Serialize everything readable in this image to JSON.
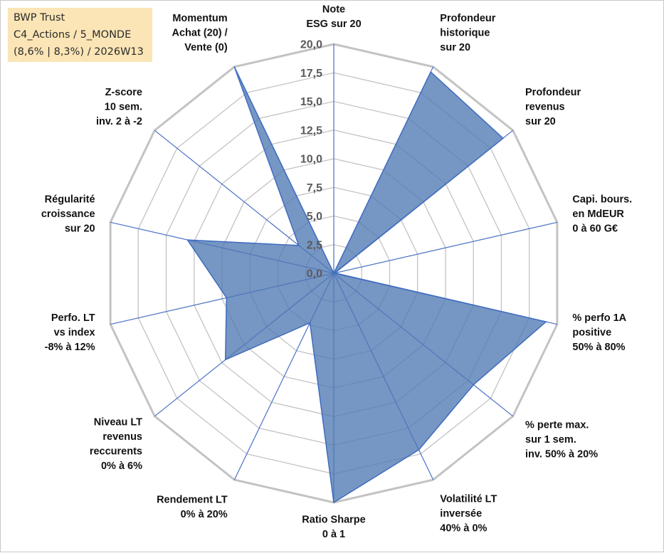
{
  "info_box": {
    "line1": "BWP Trust",
    "line2": "C4_Actions / 5_MONDE",
    "line3": "(8,6% | 8,3%) / 2026W13"
  },
  "colors": {
    "grid": "#c3c3c3",
    "spoke": "#4a72c4",
    "fill": "#4f79b3",
    "fill_stroke": "#3f6cc0",
    "info_bg": "#fbe5b6"
  },
  "chart_data": {
    "type": "radar",
    "title": "",
    "range": [
      0,
      20
    ],
    "ticks": [
      "0,0",
      "2,5",
      "5,0",
      "7,5",
      "10,0",
      "12,5",
      "15,0",
      "17,5",
      "20,0"
    ],
    "axes": [
      [
        "Note",
        "ESG sur 20"
      ],
      [
        "Profondeur",
        "historique",
        "sur 20"
      ],
      [
        "Profondeur",
        "revenus",
        "sur 20"
      ],
      [
        "Capi. bours.",
        "en MdEUR",
        "0 à 60 G€"
      ],
      [
        "% perfo 1A",
        "positive",
        "50% à 80%"
      ],
      [
        "% perte max.",
        "sur 1 sem.",
        "inv. 50% à 20%"
      ],
      [
        "Volatilité LT",
        "inversée",
        "40% à 0%"
      ],
      [
        "Ratio Sharpe",
        "0 à 1"
      ],
      [
        "Rendement LT",
        "0% à 20%"
      ],
      [
        "Niveau LT",
        "revenus",
        "reccurents",
        "0% à 6%"
      ],
      [
        "Perfo. LT",
        "vs index",
        "-8% à 12%"
      ],
      [
        "Régularité",
        "croissance",
        "sur 20"
      ],
      [
        "Z-score",
        "10 sem.",
        "inv. 2 à -2"
      ],
      [
        "Momentum",
        "Achat (20) /",
        "Vente (0)"
      ]
    ],
    "series": [
      {
        "name": "BWP Trust",
        "values": [
          0,
          19.5,
          18.9,
          0.1,
          19.0,
          15.6,
          17.1,
          20.0,
          4.8,
          12.1,
          9.6,
          13.1,
          3.9,
          20.0
        ]
      }
    ]
  }
}
